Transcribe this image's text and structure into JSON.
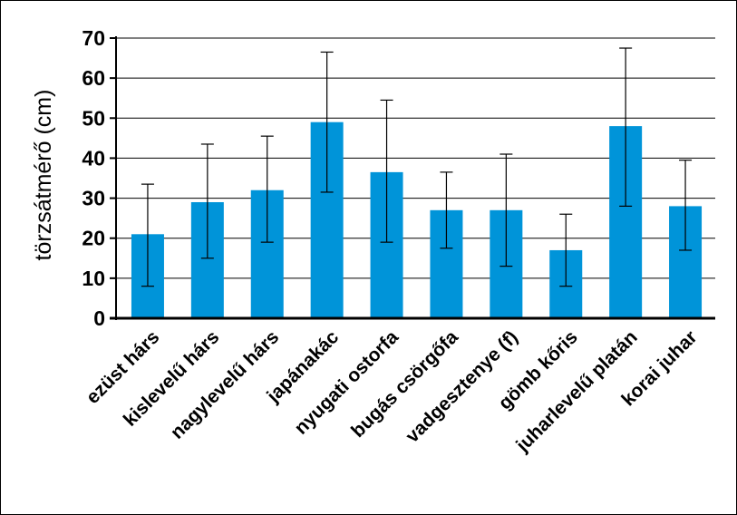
{
  "chart_data": {
    "type": "bar",
    "ylabel": "törzsátmérő (cm)",
    "xlabel": "",
    "title": "",
    "ylim": [
      0,
      70
    ],
    "yticks": [
      0,
      10,
      20,
      30,
      40,
      50,
      60,
      70
    ],
    "grid": true,
    "categories": [
      "ezüst hárs",
      "kislevelű hárs",
      "nagylevelű hárs",
      "japánakác",
      "nyugati ostorfa",
      "bugás csörgőfa",
      "vadgesztenye (f)",
      "gömb kőris",
      "juharlevelű platán",
      "korai juhar"
    ],
    "series": [
      {
        "values": [
          21,
          29,
          32,
          49,
          36.5,
          27,
          27,
          17,
          48,
          28
        ],
        "error_low": [
          8,
          15,
          19,
          31.5,
          19,
          17.5,
          13,
          8,
          28,
          17
        ],
        "error_high": [
          33.5,
          43.5,
          45.5,
          66.5,
          54.5,
          36.5,
          41,
          26,
          67.5,
          39.5
        ]
      }
    ],
    "colors": {
      "bar": "#0094d9",
      "error": "#000000",
      "grid": "#000000",
      "axis": "#000000"
    }
  }
}
